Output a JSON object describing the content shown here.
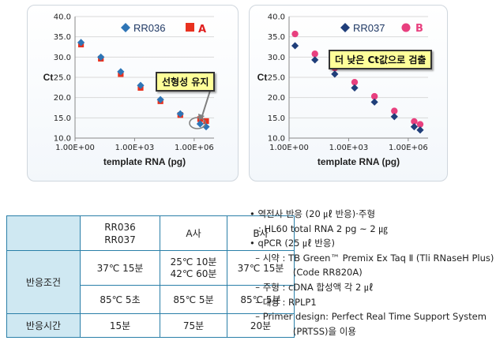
{
  "colors": {
    "diamond": "#2e75b6",
    "square": "#e8311f",
    "navy_diamond": "#1f3e7a",
    "pink_circle": "#e8407f",
    "table_header": "#cfe8f2",
    "table_border": "#2a7fa8"
  },
  "chart_data": [
    {
      "type": "scatter",
      "xlabel": "template RNA (pg)",
      "ylabel": "Ct",
      "xscale": "log",
      "xlim": [
        1,
        10000000
      ],
      "ylim": [
        10.0,
        40.0
      ],
      "yticks": [
        "10.0",
        "15.0",
        "20.0",
        "25.0",
        "30.0",
        "35.0",
        "40.0"
      ],
      "xticks": [
        "1.00E+00",
        "1.00E+03",
        "1.00E+06"
      ],
      "legend_placement": "top",
      "series": [
        {
          "name": "RR036",
          "marker": "diamond",
          "x": [
            2,
            20,
            200,
            2000,
            20000,
            200000,
            2000000,
            4000000
          ],
          "y": [
            33.6,
            30.0,
            26.4,
            23.0,
            19.5,
            16.0,
            13.5,
            12.8
          ]
        },
        {
          "name": "A",
          "marker": "square",
          "x": [
            2,
            20,
            200,
            2000,
            20000,
            200000,
            2000000,
            4000000
          ],
          "y": [
            33.1,
            29.6,
            25.8,
            22.4,
            19.1,
            15.7,
            14.7,
            14.2
          ]
        }
      ],
      "annotation": "선형성 유지"
    },
    {
      "type": "scatter",
      "xlabel": "template RNA (pg)",
      "ylabel": "Ct",
      "xscale": "log",
      "xlim": [
        1,
        10000000
      ],
      "ylim": [
        10.0,
        40.0
      ],
      "yticks": [
        "10.0",
        "15.0",
        "20.0",
        "25.0",
        "30.0",
        "35.0",
        "40.0"
      ],
      "xticks": [
        "1.00E+00",
        "1.00E+03",
        "1.00E+06"
      ],
      "legend_placement": "top",
      "series": [
        {
          "name": "RR037",
          "marker": "diamond",
          "x": [
            2,
            20,
            200,
            2000,
            20000,
            200000,
            2000000,
            4000000
          ],
          "y": [
            32.8,
            29.3,
            25.8,
            22.4,
            18.9,
            15.3,
            12.8,
            12.0
          ]
        },
        {
          "name": "B",
          "marker": "circle",
          "x": [
            2,
            20,
            200,
            2000,
            20000,
            200000,
            2000000,
            4000000
          ],
          "y": [
            35.7,
            30.8,
            27.3,
            23.8,
            20.3,
            16.7,
            14.1,
            13.4
          ]
        }
      ],
      "annotation": "더 낮은 Ct값으로 검출"
    }
  ],
  "table": {
    "headers": [
      "",
      "RR036\nRR037",
      "A사",
      "B사"
    ],
    "rows": [
      {
        "label": "반응조건",
        "cells": [
          "37℃ 15분",
          "25℃ 10분\n42℃ 60분",
          "37℃ 15분"
        ]
      },
      {
        "label": "",
        "cells": [
          "85℃ 5초",
          "85℃ 5분",
          "85℃ 5분"
        ]
      },
      {
        "label": "반응시간",
        "cells": [
          "15분",
          "75분",
          "20분"
        ]
      }
    ]
  },
  "notes": [
    "• 역전사 반응 (20 ㎕ 반응)·주형",
    "   : HL60 total RNA 2 pg ~ 2 ㎍",
    "• qPCR (25 ㎕ 반응)",
    "  – 시약 : TB Green™ Premix Ex Taq Ⅱ (Tli RNaseH Plus)",
    "               (Code RR820A)",
    "  – 주형 : cDNA 합성액 각 2 ㎕",
    "  – 대상 : RPLP1",
    "  – Primer design: Perfect Real Time Support System",
    "               (PRTSS)을 이용"
  ]
}
